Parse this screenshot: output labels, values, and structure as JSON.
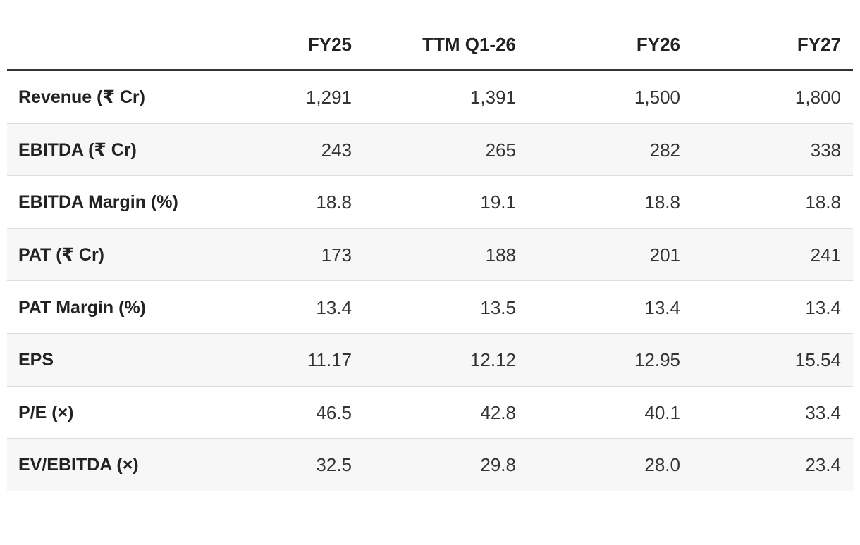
{
  "table": {
    "headers": [
      "FY25",
      "TTM Q1-26",
      "FY26",
      "FY27"
    ],
    "rows": [
      [
        "Revenue (₹ Cr)",
        "1,291",
        "1,391",
        "1,500",
        "1,800"
      ],
      [
        "EBITDA (₹ Cr)",
        "243",
        "265",
        "282",
        "338"
      ],
      [
        "EBITDA Margin (%)",
        "18.8",
        "19.1",
        "18.8",
        "18.8"
      ],
      [
        "PAT (₹ Cr)",
        "173",
        "188",
        "201",
        "241"
      ],
      [
        "PAT Margin (%)",
        "13.4",
        "13.5",
        "13.4",
        "13.4"
      ],
      [
        "EPS",
        "11.17",
        "12.12",
        "12.95",
        "15.54"
      ],
      [
        "P/E (×)",
        "46.5",
        "42.8",
        "40.1",
        "33.4"
      ],
      [
        "EV/EBITDA (×)",
        "32.5",
        "29.8",
        "28.0",
        "23.4"
      ]
    ]
  }
}
